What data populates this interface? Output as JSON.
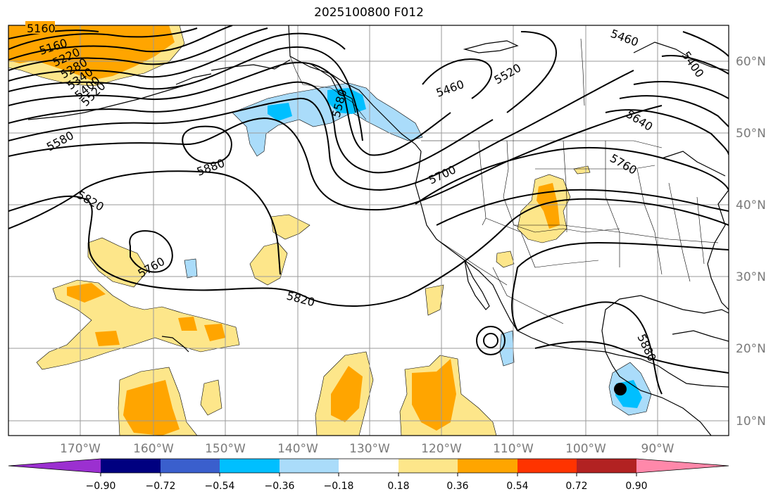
{
  "title": "2025100800 F012",
  "lat_labels": [
    "60°N",
    "50°N",
    "40°N",
    "30°N",
    "20°N",
    "10°N"
  ],
  "lon_labels": [
    "170°W",
    "160°W",
    "150°W",
    "140°W",
    "130°W",
    "120°W",
    "110°W",
    "100°W",
    "90°W"
  ],
  "contour_labels": [
    "5160",
    "5160",
    "5220",
    "5280",
    "5340",
    "5400",
    "5520",
    "5580",
    "5880",
    "5820",
    "5760",
    "5820",
    "5580",
    "5460",
    "5520",
    "5460",
    "5400",
    "5640",
    "5760",
    "5700",
    "5880"
  ],
  "colorbar": {
    "ticks": [
      "−0.90",
      "−0.72",
      "−0.54",
      "−0.36",
      "−0.18",
      "0.18",
      "0.36",
      "0.54",
      "0.72",
      "0.90"
    ],
    "colors": [
      "#9b30d0",
      "#000080",
      "#3a5fcd",
      "#00bfff",
      "#aadcfa",
      "#ffffff",
      "#fde68a",
      "#ffa500",
      "#ff3300",
      "#b22222",
      "#ff88aa"
    ]
  },
  "marker": "storm-center"
}
